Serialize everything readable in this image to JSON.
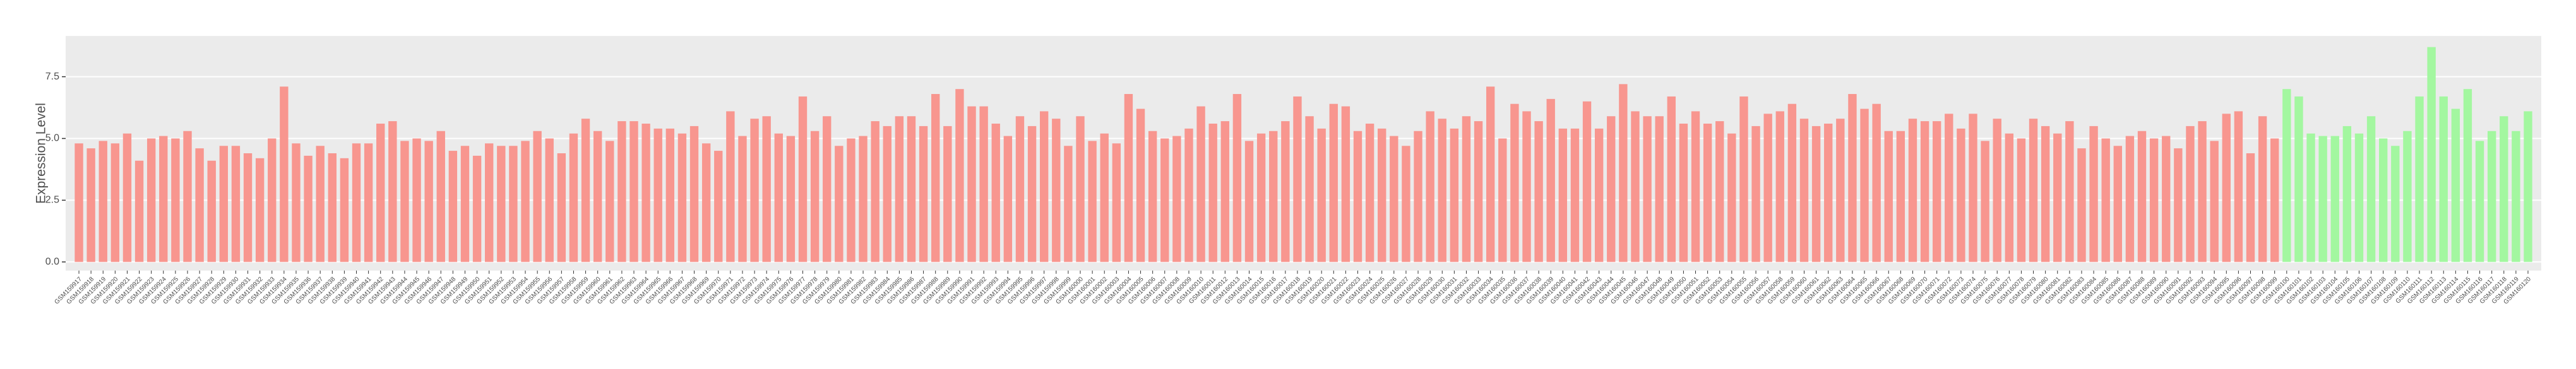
{
  "chart_data": {
    "type": "bar",
    "y_label": "Expression Level",
    "categories": [
      "GSM159917",
      "GSM159918",
      "GSM159919",
      "GSM159920",
      "GSM159921",
      "GSM159922",
      "GSM159923",
      "GSM159924",
      "GSM159925",
      "GSM159926",
      "GSM159927",
      "GSM159928",
      "GSM159929",
      "GSM159930",
      "GSM159931",
      "GSM159932",
      "GSM159933",
      "GSM159934",
      "GSM159935",
      "GSM159936",
      "GSM159937",
      "GSM159938",
      "GSM159939",
      "GSM159940",
      "GSM159941",
      "GSM159942",
      "GSM159943",
      "GSM159944",
      "GSM159945",
      "GSM159946",
      "GSM159947",
      "GSM159948",
      "GSM159949",
      "GSM159950",
      "GSM159951",
      "GSM159952",
      "GSM159953",
      "GSM159954",
      "GSM159955",
      "GSM159956",
      "GSM159957",
      "GSM159958",
      "GSM159959",
      "GSM159960",
      "GSM159961",
      "GSM159962",
      "GSM159963",
      "GSM159964",
      "GSM159965",
      "GSM159966",
      "GSM159967",
      "GSM159968",
      "GSM159969",
      "GSM159970",
      "GSM159971",
      "GSM159972",
      "GSM159973",
      "GSM159974",
      "GSM159975",
      "GSM159976",
      "GSM159977",
      "GSM159978",
      "GSM159979",
      "GSM159980",
      "GSM159981",
      "GSM159982",
      "GSM159983",
      "GSM159984",
      "GSM159985",
      "GSM159986",
      "GSM159987",
      "GSM159988",
      "GSM159989",
      "GSM159990",
      "GSM159991",
      "GSM159992",
      "GSM159993",
      "GSM159994",
      "GSM159995",
      "GSM159996",
      "GSM159997",
      "GSM159998",
      "GSM159999",
      "GSM160000",
      "GSM160001",
      "GSM160002",
      "GSM160003",
      "GSM160004",
      "GSM160005",
      "GSM160006",
      "GSM160007",
      "GSM160008",
      "GSM160009",
      "GSM160010",
      "GSM160011",
      "GSM160012",
      "GSM160013",
      "GSM160014",
      "GSM160015",
      "GSM160016",
      "GSM160017",
      "GSM160018",
      "GSM160019",
      "GSM160020",
      "GSM160021",
      "GSM160022",
      "GSM160023",
      "GSM160024",
      "GSM160025",
      "GSM160026",
      "GSM160027",
      "GSM160028",
      "GSM160029",
      "GSM160030",
      "GSM160031",
      "GSM160032",
      "GSM160033",
      "GSM160034",
      "GSM160035",
      "GSM160036",
      "GSM160037",
      "GSM160038",
      "GSM160039",
      "GSM160040",
      "GSM160041",
      "GSM160042",
      "GSM160043",
      "GSM160044",
      "GSM160045",
      "GSM160046",
      "GSM160047",
      "GSM160048",
      "GSM160049",
      "GSM160050",
      "GSM160051",
      "GSM160052",
      "GSM160053",
      "GSM160054",
      "GSM160055",
      "GSM160056",
      "GSM160057",
      "GSM160058",
      "GSM160059",
      "GSM160060",
      "GSM160061",
      "GSM160062",
      "GSM160063",
      "GSM160064",
      "GSM160065",
      "GSM160066",
      "GSM160067",
      "GSM160068",
      "GSM160069",
      "GSM160070",
      "GSM160071",
      "GSM160072",
      "GSM160073",
      "GSM160074",
      "GSM160075",
      "GSM160076",
      "GSM160077",
      "GSM160078",
      "GSM160079",
      "GSM160080",
      "GSM160081",
      "GSM160082",
      "GSM160083",
      "GSM160084",
      "GSM160085",
      "GSM160086",
      "GSM160087",
      "GSM160088",
      "GSM160089",
      "GSM160090",
      "GSM160091",
      "GSM160092",
      "GSM160093",
      "GSM160094",
      "GSM160095",
      "GSM160096",
      "GSM160097",
      "GSM160098",
      "GSM160099",
      "GSM160100",
      "GSM160101",
      "GSM160102",
      "GSM160103",
      "GSM160104",
      "GSM160105",
      "GSM160106",
      "GSM160107",
      "GSM160108",
      "GSM160109",
      "GSM160110",
      "GSM160111",
      "GSM160112",
      "GSM160113",
      "GSM160114",
      "GSM160115",
      "GSM160116",
      "GSM160117",
      "GSM160118",
      "GSM160119",
      "GSM160120"
    ],
    "values": [
      4.8,
      4.6,
      4.9,
      4.8,
      5.2,
      4.1,
      5.0,
      5.1,
      5.0,
      5.3,
      4.6,
      4.1,
      4.7,
      4.7,
      4.4,
      4.2,
      5.0,
      7.1,
      4.8,
      4.3,
      4.7,
      4.4,
      4.2,
      4.8,
      4.8,
      5.6,
      5.7,
      4.9,
      5.0,
      4.9,
      5.3,
      4.5,
      4.7,
      4.3,
      4.8,
      4.7,
      4.7,
      4.9,
      5.3,
      5.0,
      4.4,
      5.2,
      5.8,
      5.3,
      4.9,
      5.7,
      5.7,
      5.6,
      5.4,
      5.4,
      5.2,
      5.5,
      4.8,
      4.5,
      6.1,
      5.1,
      5.8,
      5.9,
      5.2,
      5.1,
      6.7,
      5.3,
      5.9,
      4.7,
      5.0,
      5.1,
      5.7,
      5.5,
      5.9,
      5.9,
      5.5,
      6.8,
      5.5,
      7.0,
      6.3,
      6.3,
      5.6,
      5.1,
      5.9,
      5.5,
      6.1,
      5.8,
      4.7,
      5.9,
      4.9,
      5.2,
      4.8,
      6.8,
      6.2,
      5.3,
      5.0,
      5.1,
      5.4,
      6.3,
      5.6,
      5.7,
      6.8,
      4.9,
      5.2,
      5.3,
      5.7,
      6.7,
      5.9,
      5.4,
      6.4,
      6.3,
      5.3,
      5.6,
      5.4,
      5.1,
      4.7,
      5.3,
      6.1,
      5.8,
      5.4,
      5.9,
      5.7,
      7.1,
      5.0,
      6.4,
      6.1,
      5.7,
      6.6,
      5.4,
      5.4,
      6.5,
      5.4,
      5.9,
      7.2,
      6.1,
      5.9,
      5.9,
      6.7,
      5.6,
      6.1,
      5.6,
      5.7,
      5.2,
      6.7,
      5.5,
      6.0,
      6.1,
      6.4,
      5.8,
      5.5,
      5.6,
      5.8,
      6.8,
      6.2,
      6.4,
      5.3,
      5.3,
      5.8,
      5.7,
      5.7,
      6.0,
      5.4,
      6.0,
      4.9,
      5.8,
      5.2,
      5.0,
      5.8,
      5.5,
      5.2,
      5.7,
      4.6,
      5.5,
      5.0,
      4.7,
      5.1,
      5.3,
      5.0,
      5.1,
      4.6,
      5.5,
      5.7,
      4.9,
      6.0,
      6.1,
      4.4,
      5.9,
      5.0,
      7.0,
      6.7,
      5.2,
      5.1,
      5.1,
      5.5,
      5.2,
      5.9,
      5.0,
      4.7,
      5.3,
      6.7,
      8.7,
      6.7,
      6.2,
      7.0,
      4.9,
      5.3,
      5.9,
      5.3,
      6.1
    ],
    "colors": [
      "#f8968f",
      "#f8968f",
      "#f8968f",
      "#f8968f",
      "#f8968f",
      "#f8968f",
      "#f8968f",
      "#f8968f",
      "#f8968f",
      "#f8968f",
      "#f8968f",
      "#f8968f",
      "#f8968f",
      "#f8968f",
      "#f8968f",
      "#f8968f",
      "#f8968f",
      "#f8968f",
      "#f8968f",
      "#f8968f",
      "#f8968f",
      "#f8968f",
      "#f8968f",
      "#f8968f",
      "#f8968f",
      "#f8968f",
      "#f8968f",
      "#f8968f",
      "#f8968f",
      "#f8968f",
      "#f8968f",
      "#f8968f",
      "#f8968f",
      "#f8968f",
      "#f8968f",
      "#f8968f",
      "#f8968f",
      "#f8968f",
      "#f8968f",
      "#f8968f",
      "#f8968f",
      "#f8968f",
      "#f8968f",
      "#f8968f",
      "#f8968f",
      "#f8968f",
      "#f8968f",
      "#f8968f",
      "#f8968f",
      "#f8968f",
      "#f8968f",
      "#f8968f",
      "#f8968f",
      "#f8968f",
      "#f8968f",
      "#f8968f",
      "#f8968f",
      "#f8968f",
      "#f8968f",
      "#f8968f",
      "#f8968f",
      "#f8968f",
      "#f8968f",
      "#f8968f",
      "#f8968f",
      "#f8968f",
      "#f8968f",
      "#f8968f",
      "#f8968f",
      "#f8968f",
      "#f8968f",
      "#f8968f",
      "#f8968f",
      "#f8968f",
      "#f8968f",
      "#f8968f",
      "#f8968f",
      "#f8968f",
      "#f8968f",
      "#f8968f",
      "#f8968f",
      "#f8968f",
      "#f8968f",
      "#f8968f",
      "#f8968f",
      "#f8968f",
      "#f8968f",
      "#f8968f",
      "#f8968f",
      "#f8968f",
      "#f8968f",
      "#f8968f",
      "#f8968f",
      "#f8968f",
      "#f8968f",
      "#f8968f",
      "#f8968f",
      "#f8968f",
      "#f8968f",
      "#f8968f",
      "#f8968f",
      "#f8968f",
      "#f8968f",
      "#f8968f",
      "#f8968f",
      "#f8968f",
      "#f8968f",
      "#f8968f",
      "#f8968f",
      "#f8968f",
      "#f8968f",
      "#f8968f",
      "#f8968f",
      "#f8968f",
      "#f8968f",
      "#f8968f",
      "#f8968f",
      "#f8968f",
      "#f8968f",
      "#f8968f",
      "#f8968f",
      "#f8968f",
      "#f8968f",
      "#f8968f",
      "#f8968f",
      "#f8968f",
      "#f8968f",
      "#f8968f",
      "#f8968f",
      "#f8968f",
      "#f8968f",
      "#f8968f",
      "#f8968f",
      "#f8968f",
      "#f8968f",
      "#f8968f",
      "#f8968f",
      "#f8968f",
      "#f8968f",
      "#f8968f",
      "#f8968f",
      "#f8968f",
      "#f8968f",
      "#f8968f",
      "#f8968f",
      "#f8968f",
      "#f8968f",
      "#f8968f",
      "#f8968f",
      "#f8968f",
      "#f8968f",
      "#f8968f",
      "#f8968f",
      "#f8968f",
      "#f8968f",
      "#f8968f",
      "#f8968f",
      "#f8968f",
      "#f8968f",
      "#f8968f",
      "#f8968f",
      "#f8968f",
      "#f8968f",
      "#f8968f",
      "#f8968f",
      "#f8968f",
      "#f8968f",
      "#f8968f",
      "#f8968f",
      "#f8968f",
      "#f8968f",
      "#f8968f",
      "#f8968f",
      "#f8968f",
      "#f8968f",
      "#f8968f",
      "#f8968f",
      "#f8968f",
      "#f8968f",
      "#f8968f",
      "#f8968f",
      "#f8968f",
      "#f8968f",
      "#a3f7a0",
      "#a3f7a0",
      "#a3f7a0",
      "#a3f7a0",
      "#a3f7a0",
      "#a3f7a0",
      "#a3f7a0",
      "#a3f7a0",
      "#a3f7a0",
      "#a3f7a0",
      "#a3f7a0",
      "#a3f7a0",
      "#a3f7a0",
      "#a3f7a0",
      "#a3f7a0",
      "#a3f7a0",
      "#a3f7a0",
      "#a3f7a0",
      "#a3f7a0",
      "#a3f7a0",
      "#a3f7a0"
    ],
    "ylim": [
      -0.35,
      9.15
    ],
    "yticks": [
      {
        "value": 0,
        "label": "0.0"
      },
      {
        "value": 2.5,
        "label": "2.5"
      },
      {
        "value": 5,
        "label": "5.0"
      },
      {
        "value": 7.5,
        "label": "7.5"
      }
    ],
    "grid": true
  }
}
